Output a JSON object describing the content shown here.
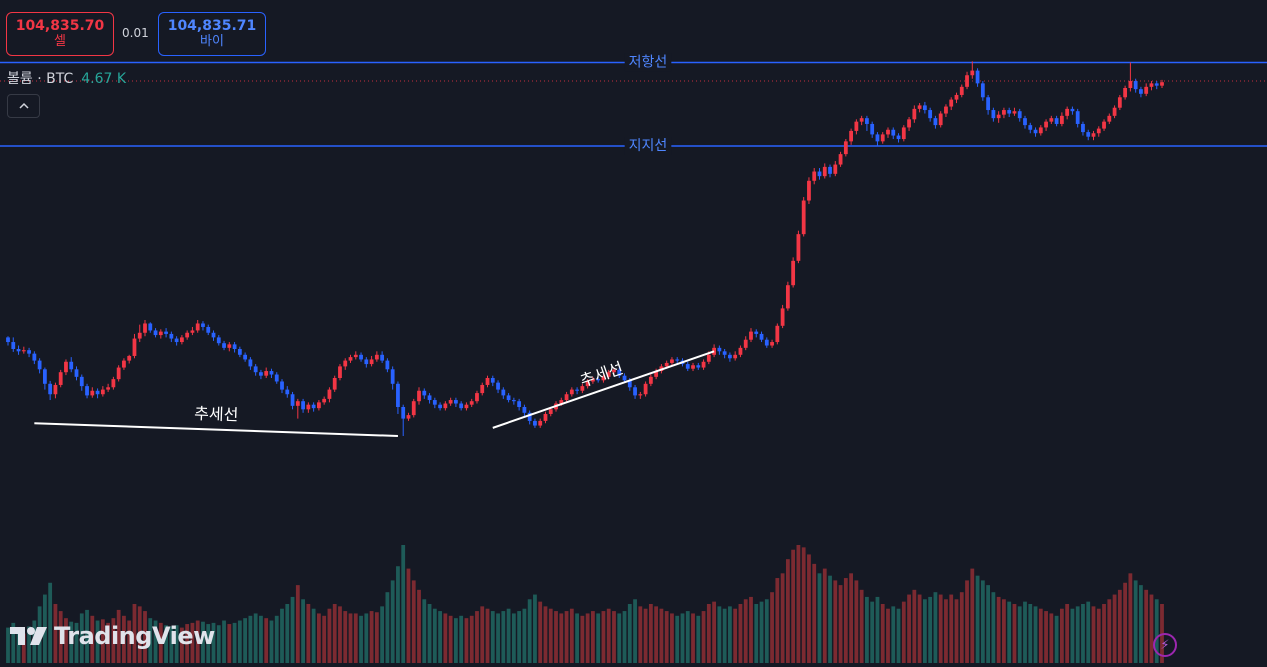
{
  "top_bar": {
    "sell_price": "104,835.70",
    "sell_label": "셀",
    "spread": "0.01",
    "buy_price": "104,835.71",
    "buy_label": "바이"
  },
  "volume_legend": {
    "label": "볼륨 · BTC",
    "value": "4.67 K"
  },
  "branding": {
    "logo_text": "TradingView"
  },
  "icons": {
    "collapse": "chevron-up-icon",
    "alert": "lightning-icon",
    "logo": "tradingview-logo-icon"
  },
  "colors": {
    "background": "#151924",
    "up": "#f23645",
    "down": "#2962ff",
    "vol_up": "#7c2a31",
    "vol_down": "#1e5b58",
    "horizontal_line": "#2962ff",
    "trend_line": "#ffffff",
    "price_dotted": "#f23645"
  },
  "chart_data": {
    "type": "candlestick",
    "symbol": "BTC",
    "y_domain": [
      0,
      1000
    ],
    "volume_domain": [
      0,
      100
    ],
    "candles": [
      [
        470,
        462,
        472,
        456,
        30
      ],
      [
        462,
        450,
        470,
        445,
        34
      ],
      [
        450,
        446,
        456,
        440,
        30
      ],
      [
        446,
        448,
        454,
        442,
        25
      ],
      [
        448,
        442,
        452,
        436,
        31
      ],
      [
        442,
        430,
        446,
        424,
        36
      ],
      [
        430,
        415,
        434,
        408,
        48
      ],
      [
        415,
        390,
        418,
        380,
        58
      ],
      [
        390,
        372,
        395,
        362,
        68
      ],
      [
        372,
        388,
        392,
        365,
        50
      ],
      [
        388,
        410,
        414,
        384,
        44
      ],
      [
        410,
        428,
        432,
        405,
        38
      ],
      [
        428,
        415,
        436,
        410,
        35
      ],
      [
        415,
        402,
        420,
        396,
        34
      ],
      [
        402,
        386,
        406,
        378,
        42
      ],
      [
        386,
        370,
        390,
        365,
        45
      ],
      [
        370,
        378,
        384,
        366,
        40
      ],
      [
        378,
        372,
        382,
        365,
        36
      ],
      [
        372,
        380,
        386,
        368,
        37
      ],
      [
        380,
        384,
        390,
        376,
        34
      ],
      [
        384,
        398,
        402,
        380,
        38
      ],
      [
        398,
        418,
        422,
        394,
        45
      ],
      [
        418,
        430,
        434,
        414,
        40
      ],
      [
        430,
        438,
        440,
        425,
        36
      ],
      [
        438,
        468,
        476,
        434,
        50
      ],
      [
        468,
        478,
        492,
        462,
        48
      ],
      [
        478,
        494,
        500,
        472,
        44
      ],
      [
        494,
        482,
        496,
        478,
        38
      ],
      [
        482,
        474,
        486,
        470,
        36
      ],
      [
        474,
        480,
        484,
        468,
        34
      ],
      [
        480,
        476,
        486,
        470,
        32
      ],
      [
        476,
        468,
        480,
        462,
        31
      ],
      [
        468,
        462,
        472,
        456,
        32
      ],
      [
        462,
        470,
        474,
        458,
        30
      ],
      [
        470,
        478,
        482,
        466,
        33
      ],
      [
        478,
        482,
        488,
        474,
        34
      ],
      [
        482,
        494,
        500,
        478,
        36
      ],
      [
        494,
        488,
        498,
        482,
        35
      ],
      [
        488,
        478,
        492,
        474,
        33
      ],
      [
        478,
        470,
        482,
        464,
        34
      ],
      [
        470,
        460,
        474,
        456,
        32
      ],
      [
        460,
        452,
        464,
        448,
        36
      ],
      [
        452,
        458,
        462,
        446,
        33
      ],
      [
        458,
        450,
        462,
        444,
        34
      ],
      [
        450,
        440,
        454,
        436,
        36
      ],
      [
        440,
        432,
        444,
        428,
        38
      ],
      [
        432,
        420,
        436,
        414,
        40
      ],
      [
        420,
        410,
        424,
        404,
        42
      ],
      [
        410,
        404,
        414,
        398,
        40
      ],
      [
        404,
        412,
        418,
        400,
        38
      ],
      [
        412,
        406,
        416,
        400,
        36
      ],
      [
        406,
        394,
        410,
        390,
        40
      ],
      [
        394,
        380,
        398,
        374,
        46
      ],
      [
        380,
        372,
        386,
        366,
        50
      ],
      [
        372,
        352,
        376,
        346,
        56
      ],
      [
        352,
        360,
        364,
        330,
        66
      ],
      [
        360,
        346,
        364,
        340,
        54
      ],
      [
        346,
        354,
        358,
        340,
        50
      ],
      [
        354,
        348,
        358,
        342,
        46
      ],
      [
        348,
        358,
        362,
        344,
        42
      ],
      [
        358,
        364,
        368,
        354,
        40
      ],
      [
        364,
        380,
        384,
        358,
        46
      ],
      [
        380,
        400,
        404,
        376,
        50
      ],
      [
        400,
        420,
        424,
        396,
        48
      ],
      [
        420,
        430,
        434,
        414,
        44
      ],
      [
        430,
        436,
        440,
        426,
        42
      ],
      [
        436,
        440,
        446,
        432,
        42
      ],
      [
        440,
        432,
        444,
        428,
        40
      ],
      [
        432,
        424,
        436,
        418,
        42
      ],
      [
        424,
        432,
        438,
        420,
        44
      ],
      [
        432,
        440,
        446,
        428,
        43
      ],
      [
        440,
        430,
        446,
        426,
        48
      ],
      [
        430,
        415,
        434,
        410,
        60
      ],
      [
        415,
        390,
        420,
        380,
        70
      ],
      [
        390,
        350,
        394,
        338,
        82
      ],
      [
        350,
        330,
        354,
        300,
        100
      ],
      [
        330,
        336,
        340,
        326,
        80
      ],
      [
        336,
        360,
        364,
        332,
        70
      ],
      [
        360,
        378,
        384,
        354,
        62
      ],
      [
        378,
        370,
        382,
        364,
        54
      ],
      [
        370,
        362,
        374,
        356,
        50
      ],
      [
        362,
        354,
        366,
        348,
        46
      ],
      [
        354,
        348,
        358,
        344,
        44
      ],
      [
        348,
        356,
        360,
        344,
        42
      ],
      [
        356,
        362,
        366,
        352,
        40
      ],
      [
        362,
        356,
        366,
        350,
        38
      ],
      [
        356,
        348,
        360,
        344,
        40
      ],
      [
        348,
        354,
        358,
        344,
        38
      ],
      [
        354,
        360,
        364,
        350,
        40
      ],
      [
        360,
        374,
        378,
        356,
        44
      ],
      [
        374,
        388,
        392,
        370,
        48
      ],
      [
        388,
        400,
        404,
        384,
        46
      ],
      [
        400,
        392,
        404,
        386,
        44
      ],
      [
        392,
        380,
        396,
        374,
        42
      ],
      [
        380,
        370,
        384,
        364,
        44
      ],
      [
        370,
        362,
        374,
        358,
        46
      ],
      [
        362,
        360,
        366,
        354,
        42
      ],
      [
        360,
        350,
        364,
        344,
        44
      ],
      [
        350,
        340,
        354,
        334,
        46
      ],
      [
        340,
        326,
        344,
        320,
        54
      ],
      [
        326,
        318,
        330,
        314,
        58
      ],
      [
        318,
        326,
        330,
        314,
        52
      ],
      [
        326,
        338,
        342,
        322,
        48
      ],
      [
        338,
        346,
        350,
        334,
        46
      ],
      [
        346,
        356,
        360,
        342,
        44
      ],
      [
        356,
        362,
        366,
        352,
        42
      ],
      [
        362,
        372,
        376,
        358,
        44
      ],
      [
        372,
        380,
        384,
        368,
        46
      ],
      [
        380,
        378,
        384,
        372,
        42
      ],
      [
        378,
        386,
        390,
        374,
        40
      ],
      [
        386,
        394,
        398,
        382,
        42
      ],
      [
        394,
        398,
        402,
        390,
        44
      ],
      [
        398,
        396,
        402,
        392,
        42
      ],
      [
        396,
        402,
        406,
        392,
        44
      ],
      [
        402,
        410,
        414,
        398,
        46
      ],
      [
        410,
        414,
        418,
        406,
        44
      ],
      [
        414,
        404,
        418,
        400,
        42
      ],
      [
        404,
        396,
        408,
        392,
        44
      ],
      [
        396,
        384,
        400,
        378,
        50
      ],
      [
        384,
        370,
        388,
        364,
        54
      ],
      [
        370,
        372,
        376,
        364,
        48
      ],
      [
        372,
        390,
        394,
        368,
        46
      ],
      [
        390,
        402,
        406,
        386,
        50
      ],
      [
        402,
        412,
        416,
        398,
        48
      ],
      [
        412,
        420,
        424,
        408,
        46
      ],
      [
        420,
        426,
        430,
        416,
        44
      ],
      [
        426,
        432,
        436,
        422,
        42
      ],
      [
        432,
        430,
        436,
        424,
        40
      ],
      [
        430,
        424,
        434,
        420,
        42
      ],
      [
        424,
        416,
        428,
        412,
        44
      ],
      [
        416,
        422,
        426,
        412,
        42
      ],
      [
        422,
        418,
        426,
        414,
        40
      ],
      [
        418,
        428,
        432,
        414,
        44
      ],
      [
        428,
        440,
        446,
        424,
        50
      ],
      [
        440,
        452,
        458,
        436,
        52
      ],
      [
        452,
        446,
        456,
        440,
        48
      ],
      [
        446,
        440,
        450,
        434,
        46
      ],
      [
        440,
        434,
        444,
        428,
        48
      ],
      [
        434,
        440,
        446,
        430,
        46
      ],
      [
        440,
        452,
        456,
        436,
        50
      ],
      [
        452,
        466,
        472,
        448,
        54
      ],
      [
        466,
        480,
        486,
        462,
        56
      ],
      [
        480,
        476,
        484,
        470,
        50
      ],
      [
        476,
        466,
        480,
        462,
        52
      ],
      [
        466,
        456,
        470,
        452,
        54
      ],
      [
        456,
        462,
        466,
        452,
        60
      ],
      [
        462,
        490,
        494,
        458,
        72
      ],
      [
        490,
        520,
        526,
        486,
        76
      ],
      [
        520,
        560,
        566,
        516,
        88
      ],
      [
        560,
        602,
        608,
        556,
        96
      ],
      [
        602,
        648,
        654,
        598,
        100
      ],
      [
        648,
        706,
        712,
        644,
        98
      ],
      [
        706,
        740,
        746,
        700,
        92
      ],
      [
        740,
        756,
        762,
        734,
        84
      ],
      [
        756,
        748,
        762,
        742,
        76
      ],
      [
        748,
        764,
        770,
        744,
        80
      ],
      [
        764,
        752,
        768,
        746,
        74
      ],
      [
        752,
        768,
        774,
        748,
        70
      ],
      [
        768,
        786,
        790,
        764,
        66
      ],
      [
        786,
        808,
        812,
        782,
        72
      ],
      [
        808,
        826,
        830,
        802,
        76
      ],
      [
        826,
        842,
        846,
        820,
        70
      ],
      [
        842,
        848,
        852,
        836,
        62
      ],
      [
        848,
        838,
        852,
        826,
        56
      ],
      [
        838,
        820,
        842,
        814,
        52
      ],
      [
        820,
        808,
        824,
        800,
        56
      ],
      [
        808,
        820,
        824,
        804,
        50
      ],
      [
        820,
        828,
        832,
        814,
        46
      ],
      [
        828,
        818,
        832,
        812,
        48
      ],
      [
        818,
        812,
        822,
        806,
        46
      ],
      [
        812,
        832,
        836,
        808,
        52
      ],
      [
        832,
        846,
        850,
        826,
        58
      ],
      [
        846,
        864,
        870,
        840,
        62
      ],
      [
        864,
        870,
        874,
        858,
        58
      ],
      [
        870,
        862,
        876,
        856,
        54
      ],
      [
        862,
        848,
        866,
        842,
        56
      ],
      [
        848,
        836,
        852,
        830,
        60
      ],
      [
        836,
        856,
        860,
        832,
        58
      ],
      [
        856,
        868,
        872,
        850,
        54
      ],
      [
        868,
        880,
        884,
        862,
        58
      ],
      [
        880,
        888,
        892,
        874,
        54
      ],
      [
        888,
        902,
        906,
        884,
        60
      ],
      [
        902,
        922,
        928,
        898,
        70
      ],
      [
        922,
        930,
        946,
        916,
        80
      ],
      [
        930,
        908,
        934,
        902,
        74
      ],
      [
        908,
        884,
        912,
        878,
        70
      ],
      [
        884,
        862,
        888,
        854,
        66
      ],
      [
        862,
        848,
        866,
        842,
        60
      ],
      [
        848,
        854,
        860,
        840,
        56
      ],
      [
        854,
        862,
        866,
        848,
        54
      ],
      [
        862,
        856,
        866,
        850,
        52
      ],
      [
        856,
        860,
        866,
        852,
        50
      ],
      [
        860,
        848,
        864,
        842,
        48
      ],
      [
        848,
        836,
        852,
        830,
        52
      ],
      [
        836,
        828,
        840,
        822,
        50
      ],
      [
        828,
        822,
        832,
        816,
        48
      ],
      [
        822,
        832,
        836,
        818,
        46
      ],
      [
        832,
        842,
        846,
        826,
        44
      ],
      [
        842,
        848,
        852,
        838,
        42
      ],
      [
        848,
        838,
        852,
        834,
        40
      ],
      [
        838,
        852,
        858,
        834,
        46
      ],
      [
        852,
        864,
        868,
        846,
        50
      ],
      [
        864,
        860,
        868,
        854,
        46
      ],
      [
        860,
        838,
        864,
        832,
        48
      ],
      [
        838,
        824,
        842,
        818,
        50
      ],
      [
        824,
        816,
        828,
        810,
        52
      ],
      [
        816,
        822,
        826,
        810,
        48
      ],
      [
        822,
        830,
        834,
        816,
        46
      ],
      [
        830,
        842,
        846,
        826,
        50
      ],
      [
        842,
        852,
        856,
        838,
        54
      ],
      [
        852,
        866,
        870,
        848,
        58
      ],
      [
        866,
        884,
        888,
        862,
        62
      ],
      [
        884,
        900,
        904,
        880,
        68
      ],
      [
        900,
        912,
        944,
        894,
        76
      ],
      [
        912,
        898,
        916,
        892,
        70
      ],
      [
        898,
        890,
        902,
        884,
        66
      ],
      [
        890,
        902,
        908,
        886,
        62
      ],
      [
        902,
        908,
        912,
        896,
        58
      ],
      [
        908,
        904,
        912,
        898,
        54
      ],
      [
        904,
        910,
        914,
        900,
        50
      ]
    ],
    "horizontal_lines": [
      {
        "label": "저항선",
        "value": 944
      },
      {
        "label": "지지선",
        "value": 800
      }
    ],
    "trend_lines": [
      {
        "label": "추세선",
        "start_index": 5,
        "end_index": 74,
        "start_value": 322,
        "end_value": 300
      },
      {
        "label": "추세선",
        "start_index": 92,
        "end_index": 134,
        "start_value": 314,
        "end_value": 446
      }
    ],
    "current_price_value": 912
  }
}
